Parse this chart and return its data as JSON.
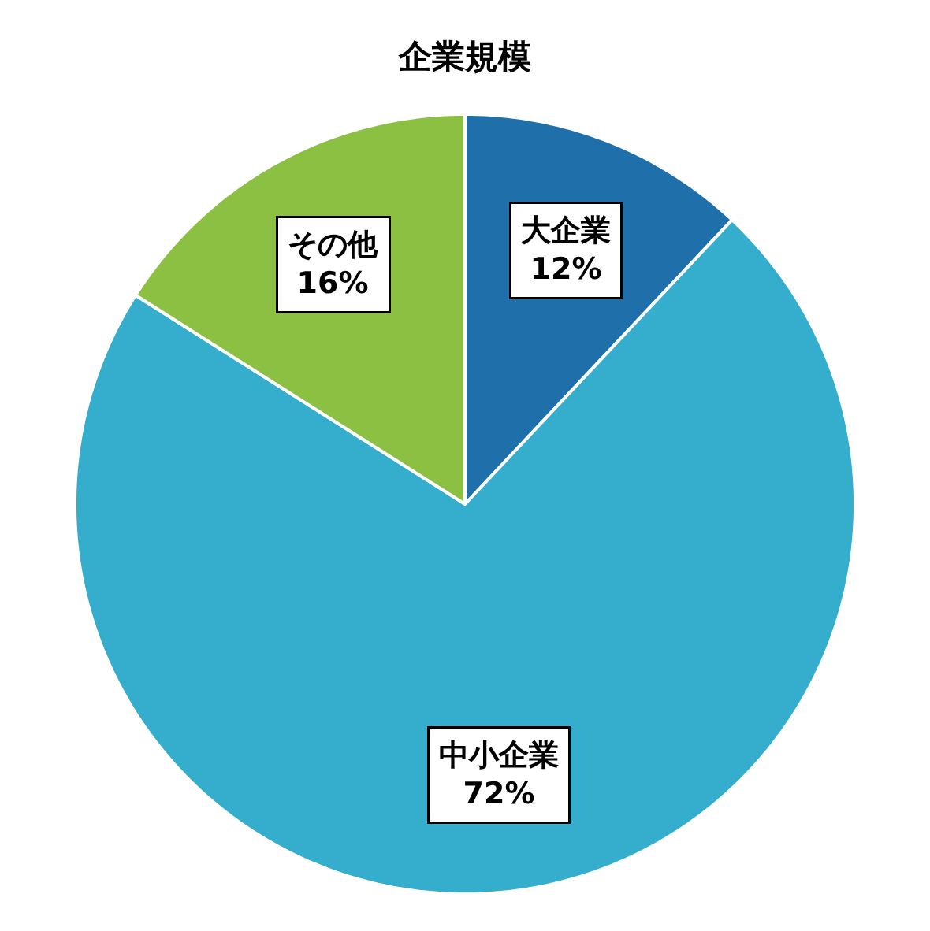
{
  "chart_data": {
    "type": "pie",
    "title": "企業規模",
    "categories": [
      "大企業",
      "中小企業",
      "その他"
    ],
    "values": [
      12,
      72,
      16
    ],
    "value_labels": [
      "12%",
      "72%",
      "16%"
    ],
    "colors": [
      "#1f6fab",
      "#35aece",
      "#8bc043"
    ],
    "legend": false
  }
}
